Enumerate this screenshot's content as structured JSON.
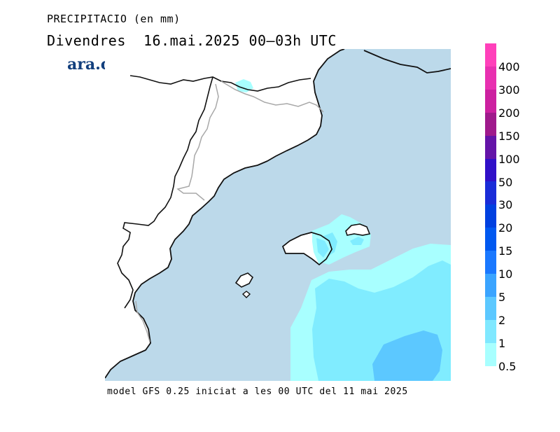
{
  "header": {
    "title": "PRECIPITACIO (en mm)",
    "subtitle": "Divendres  16.mai.2025 00—03h UTC"
  },
  "brand": {
    "logo_text": "ara.cat",
    "logo_color": "#123f7d"
  },
  "footer": {
    "model_note": "model GFS 0.25 iniciat a les 00 UTC del 11 mai 2025"
  },
  "legend": {
    "levels": [
      {
        "label": "400",
        "color": "#ff40ba"
      },
      {
        "label": "300",
        "color": "#e830b0"
      },
      {
        "label": "200",
        "color": "#cc20a0"
      },
      {
        "label": "150",
        "color": "#9f1a8c"
      },
      {
        "label": "100",
        "color": "#6414a8"
      },
      {
        "label": "50",
        "color": "#3010c8"
      },
      {
        "label": "30",
        "color": "#1a2cd8"
      },
      {
        "label": "20",
        "color": "#0040e0"
      },
      {
        "label": "15",
        "color": "#0058f0"
      },
      {
        "label": "10",
        "color": "#1a78ff"
      },
      {
        "label": "5",
        "color": "#3aa4ff"
      },
      {
        "label": "2",
        "color": "#5cc8ff"
      },
      {
        "label": "1",
        "color": "#80e8ff"
      },
      {
        "label": "0.5",
        "color": "#a8ffff"
      }
    ]
  },
  "map": {
    "sea_color": "#bcd9ea",
    "land_color": "#ffffff",
    "coast_color": "#111111",
    "border_color": "#a8a8a8"
  }
}
